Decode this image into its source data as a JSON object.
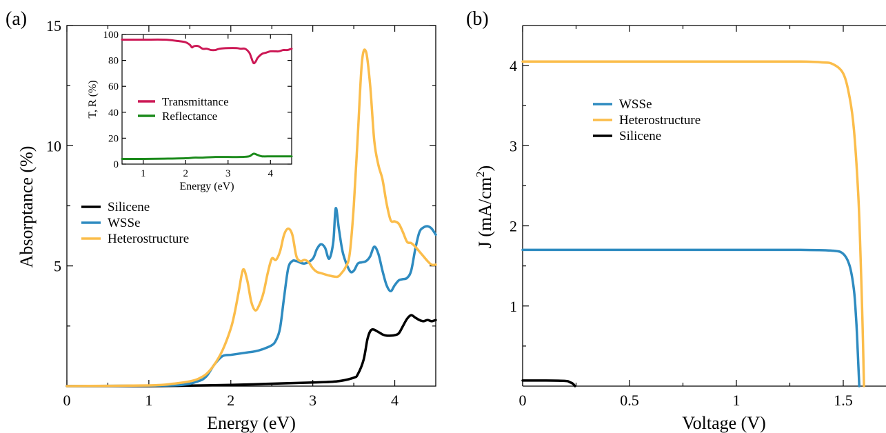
{
  "colors": {
    "silicene": "#000000",
    "wsse": "#2e8bc0",
    "heterostructure": "#fbbd4b",
    "transmittance": "#cc1855",
    "reflectance": "#1b8a1b"
  },
  "chart_data": [
    {
      "type": "line",
      "panel_label": "(a)",
      "xlabel": "Energy (eV)",
      "ylabel": "Absorptance (%)",
      "xlim": [
        0,
        4.5
      ],
      "ylim": [
        0,
        15
      ],
      "xticks": [
        "0",
        "1",
        "2",
        "3",
        "4"
      ],
      "yticks": [
        "5",
        "10",
        "15"
      ],
      "legend_position": "center-left",
      "series": [
        {
          "name": "Silicene",
          "color_key": "silicene",
          "x": [
            0,
            1.0,
            1.5,
            2.0,
            2.5,
            3.0,
            3.3,
            3.5,
            3.55,
            3.62,
            3.67,
            3.72,
            3.8,
            3.85,
            3.9,
            3.95,
            4.0,
            4.05,
            4.1,
            4.15,
            4.2,
            4.25,
            4.3,
            4.35,
            4.4,
            4.45,
            4.5
          ],
          "y": [
            0.0,
            0.0,
            0.02,
            0.05,
            0.1,
            0.15,
            0.2,
            0.35,
            0.5,
            1.1,
            2.0,
            2.35,
            2.25,
            2.15,
            2.1,
            2.1,
            2.12,
            2.2,
            2.5,
            2.8,
            2.95,
            2.85,
            2.75,
            2.7,
            2.75,
            2.7,
            2.75
          ]
        },
        {
          "name": "WSSe",
          "color_key": "wsse",
          "x": [
            0,
            1.0,
            1.4,
            1.6,
            1.7,
            1.8,
            1.9,
            2.0,
            2.1,
            2.2,
            2.3,
            2.4,
            2.5,
            2.55,
            2.6,
            2.65,
            2.7,
            2.75,
            2.8,
            2.9,
            3.0,
            3.05,
            3.1,
            3.15,
            3.2,
            3.25,
            3.28,
            3.32,
            3.37,
            3.45,
            3.5,
            3.55,
            3.6,
            3.65,
            3.7,
            3.75,
            3.8,
            3.85,
            3.9,
            3.95,
            4.0,
            4.05,
            4.1,
            4.15,
            4.2,
            4.25,
            4.3,
            4.35,
            4.4,
            4.45,
            4.5
          ],
          "y": [
            0.0,
            0.02,
            0.05,
            0.2,
            0.4,
            0.9,
            1.25,
            1.3,
            1.35,
            1.4,
            1.45,
            1.55,
            1.7,
            1.9,
            2.4,
            3.7,
            4.9,
            5.2,
            5.2,
            5.1,
            5.3,
            5.7,
            5.9,
            5.75,
            5.3,
            6.0,
            7.4,
            6.5,
            5.5,
            4.8,
            4.8,
            5.1,
            5.15,
            5.2,
            5.4,
            5.8,
            5.5,
            4.8,
            4.2,
            3.95,
            4.2,
            4.4,
            4.45,
            4.5,
            4.8,
            5.7,
            6.4,
            6.6,
            6.65,
            6.55,
            6.3
          ]
        },
        {
          "name": "Heterostructure",
          "color_key": "heterostructure",
          "x": [
            0,
            1.0,
            1.3,
            1.5,
            1.6,
            1.7,
            1.8,
            1.9,
            2.0,
            2.05,
            2.1,
            2.15,
            2.2,
            2.25,
            2.3,
            2.35,
            2.4,
            2.45,
            2.5,
            2.55,
            2.6,
            2.65,
            2.7,
            2.75,
            2.8,
            2.85,
            2.9,
            2.95,
            3.0,
            3.05,
            3.1,
            3.2,
            3.3,
            3.35,
            3.4,
            3.45,
            3.5,
            3.55,
            3.6,
            3.65,
            3.7,
            3.75,
            3.8,
            3.85,
            3.9,
            3.95,
            4.0,
            4.05,
            4.1,
            4.15,
            4.2,
            4.25,
            4.3,
            4.35,
            4.4,
            4.45,
            4.5
          ],
          "y": [
            0.0,
            0.03,
            0.1,
            0.2,
            0.3,
            0.5,
            0.9,
            1.5,
            2.4,
            3.1,
            4.0,
            4.85,
            4.4,
            3.5,
            3.15,
            3.4,
            3.9,
            4.7,
            5.3,
            5.25,
            5.6,
            6.3,
            6.55,
            6.3,
            5.4,
            5.2,
            5.25,
            5.15,
            4.9,
            4.75,
            4.7,
            4.6,
            4.55,
            4.7,
            4.95,
            5.5,
            7.5,
            10.5,
            13.5,
            13.9,
            12.5,
            10.2,
            9.2,
            8.6,
            7.6,
            6.9,
            6.85,
            6.75,
            6.4,
            6.0,
            5.95,
            5.8,
            5.6,
            5.4,
            5.2,
            5.05,
            5.05
          ]
        }
      ]
    },
    {
      "type": "line",
      "panel_label": "",
      "inset": true,
      "xlabel": "Energy (eV)",
      "ylabel": "T, R (%)",
      "xlim": [
        0.5,
        4.5
      ],
      "ylim": [
        0,
        100
      ],
      "xticks": [
        "1",
        "2",
        "3",
        "4"
      ],
      "yticks": [
        "0",
        "20",
        "40",
        "60",
        "80",
        "100"
      ],
      "legend_position": "center",
      "series": [
        {
          "name": "Transmittance",
          "color_key": "transmittance",
          "x": [
            0.5,
            1.0,
            1.5,
            1.8,
            2.0,
            2.1,
            2.15,
            2.2,
            2.3,
            2.4,
            2.5,
            2.6,
            2.7,
            2.8,
            3.0,
            3.2,
            3.3,
            3.4,
            3.5,
            3.55,
            3.6,
            3.65,
            3.7,
            3.8,
            3.9,
            4.0,
            4.1,
            4.2,
            4.3,
            4.4,
            4.5
          ],
          "y": [
            96,
            96,
            96,
            95,
            94,
            92,
            90,
            91,
            91,
            89,
            89,
            88,
            88,
            89,
            89.5,
            89.5,
            89,
            89,
            86,
            82,
            78,
            79,
            82,
            85,
            86,
            87,
            87,
            87,
            88,
            88,
            89
          ]
        },
        {
          "name": "Reflectance",
          "color_key": "reflectance",
          "x": [
            0.5,
            1.0,
            1.5,
            2.0,
            2.2,
            2.4,
            2.7,
            3.0,
            3.3,
            3.5,
            3.6,
            3.7,
            3.8,
            4.0,
            4.2,
            4.5
          ],
          "y": [
            4,
            4,
            4.2,
            4.5,
            5,
            5,
            5.5,
            5.5,
            5.5,
            6,
            8,
            7,
            6,
            6,
            6,
            6
          ]
        }
      ]
    },
    {
      "type": "line",
      "panel_label": "(b)",
      "xlabel": "Voltage (V)",
      "ylabel": "J (mA/cm",
      "ylabel_superscript": "2",
      "ylabel_suffix": ")",
      "xlim": [
        0,
        1.7
      ],
      "ylim": [
        0,
        4.5
      ],
      "xticks": [
        "0",
        "0.5",
        "1",
        "1.5"
      ],
      "yticks": [
        "1",
        "2",
        "3",
        "4"
      ],
      "legend_position": "upper-left",
      "series": [
        {
          "name": "WSSe",
          "color_key": "wsse",
          "x": [
            0,
            0.5,
            1.0,
            1.3,
            1.45,
            1.5,
            1.53,
            1.55,
            1.56,
            1.565,
            1.57,
            1.575
          ],
          "y": [
            1.7,
            1.7,
            1.7,
            1.7,
            1.69,
            1.65,
            1.5,
            1.2,
            0.85,
            0.6,
            0.3,
            0.0
          ]
        },
        {
          "name": "Heterostructure",
          "color_key": "heterostructure",
          "x": [
            0,
            0.5,
            1.0,
            1.3,
            1.4,
            1.45,
            1.5,
            1.53,
            1.55,
            1.57,
            1.58,
            1.59,
            1.597
          ],
          "y": [
            4.05,
            4.05,
            4.05,
            4.05,
            4.04,
            4.02,
            3.9,
            3.6,
            3.2,
            2.4,
            1.7,
            0.8,
            0.0
          ]
        },
        {
          "name": "Silicene",
          "color_key": "silicene",
          "x": [
            0,
            0.1,
            0.2,
            0.22,
            0.235,
            0.245
          ],
          "y": [
            0.07,
            0.07,
            0.065,
            0.05,
            0.03,
            0.0
          ]
        }
      ]
    }
  ]
}
